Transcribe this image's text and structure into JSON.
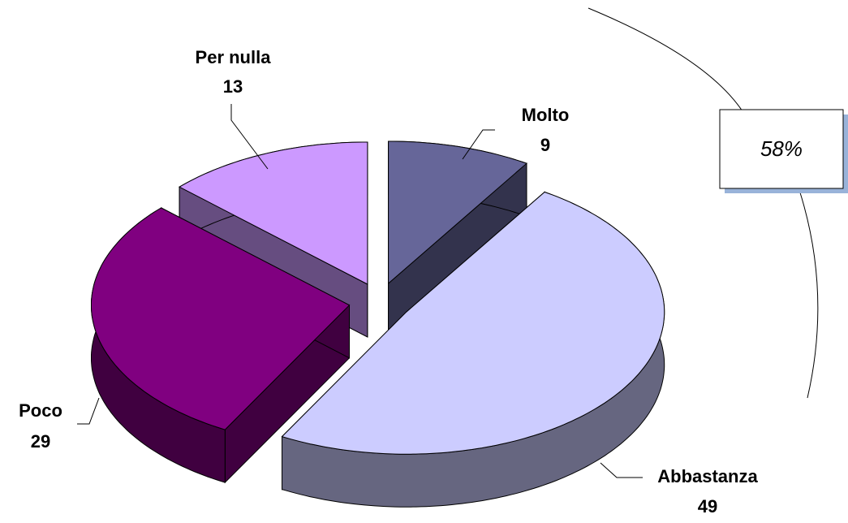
{
  "chart_data": {
    "type": "pie",
    "categories": [
      "Molto",
      "Abbastanza",
      "Poco",
      "Per nulla"
    ],
    "values": [
      9,
      49,
      29,
      13
    ],
    "colors": [
      "#666699",
      "#CCCCFF",
      "#800080",
      "#CC99FF"
    ],
    "annotation": "58%"
  }
}
